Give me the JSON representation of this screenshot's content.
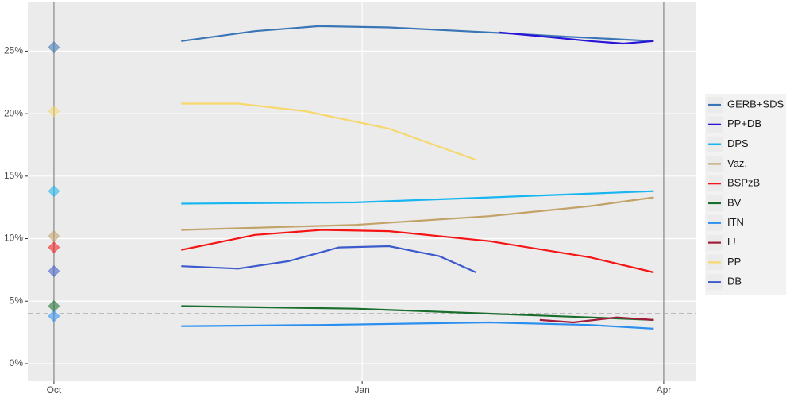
{
  "chart_data": {
    "type": "line",
    "xlim": [
      -7.8,
      191.5
    ],
    "xticks": [
      {
        "value": 0,
        "label": "Oct"
      },
      {
        "value": 92,
        "label": "Jan"
      },
      {
        "value": 182,
        "label": "Apr"
      }
    ],
    "ylim": [
      -1.4,
      28.9
    ],
    "yticks": [
      {
        "value": 0,
        "label": "0%"
      },
      {
        "value": 5,
        "label": "5%"
      },
      {
        "value": 10,
        "label": "10%"
      },
      {
        "value": 15,
        "label": "15%"
      },
      {
        "value": 20,
        "label": "20%"
      },
      {
        "value": 25,
        "label": "25%"
      }
    ],
    "grid": true,
    "threshold": 4,
    "legend": "right",
    "series": [
      {
        "name": "GERB+SDS",
        "color": "#3a75b5",
        "x": [
          38,
          60,
          79,
          100,
          130,
          150,
          179
        ],
        "values": [
          25.8,
          26.6,
          27.0,
          26.9,
          26.5,
          26.2,
          25.8
        ],
        "election_value": 25.3
      },
      {
        "name": "PP+DB",
        "color": "#2a14d8",
        "x": [
          133,
          145,
          160,
          170,
          179
        ],
        "values": [
          26.5,
          26.2,
          25.8,
          25.6,
          25.8
        ]
      },
      {
        "name": "DPS",
        "color": "#17b6f0",
        "x": [
          38,
          90,
          130,
          179
        ],
        "values": [
          12.8,
          12.9,
          13.3,
          13.8
        ],
        "election_value": 13.8
      },
      {
        "name": "Vaz.",
        "color": "#c2a267",
        "x": [
          38,
          90,
          130,
          160,
          179
        ],
        "values": [
          10.7,
          11.1,
          11.8,
          12.6,
          13.3
        ],
        "election_value": 10.2
      },
      {
        "name": "BSPzB",
        "color": "#f51515",
        "x": [
          38,
          60,
          80,
          100,
          130,
          160,
          179
        ],
        "values": [
          9.1,
          10.3,
          10.7,
          10.6,
          9.8,
          8.5,
          7.3
        ],
        "election_value": 9.3
      },
      {
        "name": "BV",
        "color": "#1a6e2c",
        "x": [
          38,
          90,
          130,
          160,
          179
        ],
        "values": [
          4.6,
          4.4,
          4.0,
          3.7,
          3.5
        ],
        "election_value": 4.6
      },
      {
        "name": "ITN",
        "color": "#2b8ff0",
        "x": [
          38,
          80,
          130,
          160,
          179
        ],
        "values": [
          3.0,
          3.1,
          3.3,
          3.1,
          2.8
        ],
        "election_value": 3.8
      },
      {
        "name": "L!",
        "color": "#a21b3a",
        "x": [
          145,
          155,
          168,
          179
        ],
        "values": [
          3.5,
          3.3,
          3.7,
          3.5
        ]
      },
      {
        "name": "PP",
        "color": "#f6d86c",
        "x": [
          38,
          55,
          75,
          100,
          126
        ],
        "values": [
          20.8,
          20.8,
          20.2,
          18.8,
          16.3
        ],
        "election_value": 20.2
      },
      {
        "name": "DB",
        "color": "#3d5bcc",
        "x": [
          38,
          55,
          70,
          85,
          100,
          115,
          126
        ],
        "values": [
          7.8,
          7.6,
          8.2,
          9.3,
          9.4,
          8.6,
          7.3
        ],
        "election_value": 7.4
      }
    ]
  }
}
